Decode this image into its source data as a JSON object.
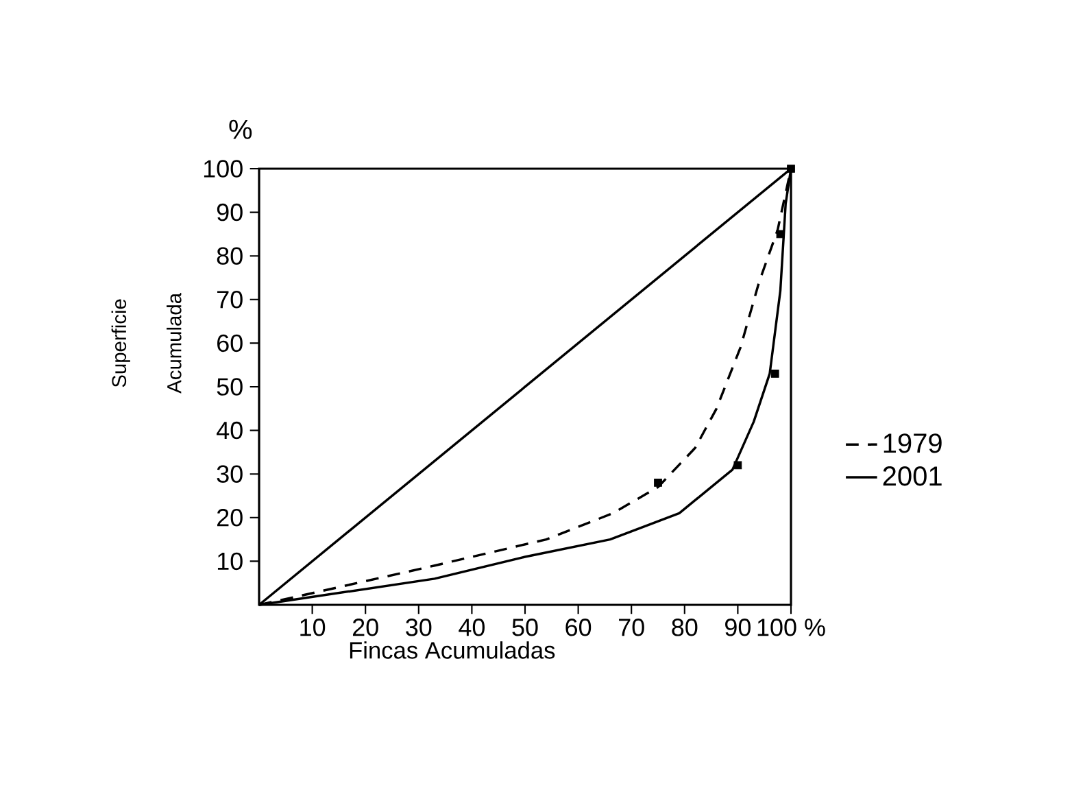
{
  "chart_data": {
    "type": "line",
    "xlabel": "Fincas Acumuladas",
    "ylabel": "Superficie",
    "annotations": [
      "Acumulada",
      "%"
    ],
    "xlim": [
      0,
      100
    ],
    "ylim": [
      0,
      100
    ],
    "xticks": [
      10,
      20,
      30,
      40,
      50,
      60,
      70,
      80,
      90,
      {
        "value": 100,
        "label": "100 %"
      }
    ],
    "yticks": [
      10,
      20,
      30,
      40,
      50,
      60,
      70,
      80,
      90,
      100
    ],
    "legend": "right",
    "series": [
      {
        "name": "1979",
        "color": "#000000",
        "line_style": "dashed",
        "x": [
          0,
          7.5,
          33,
          54,
          66.5,
          75,
          82,
          86,
          90.5,
          94,
          97.5,
          100
        ],
        "values": [
          0,
          2,
          9,
          15,
          21,
          27,
          36,
          45,
          59,
          74,
          86,
          100
        ]
      },
      {
        "name": "2001",
        "color": "#000000",
        "line_style": "solid",
        "x": [
          0,
          33,
          50,
          66,
          79,
          89,
          93,
          96,
          98,
          99,
          100
        ],
        "values": [
          0,
          6,
          11,
          15,
          21,
          31,
          42,
          53,
          72,
          92,
          100
        ]
      },
      {
        "color": "#000000",
        "line_style": "solid",
        "x": [
          0,
          100
        ],
        "values": [
          0,
          100
        ]
      },
      {
        "type": "scatter",
        "marker": "square",
        "color": "#000000",
        "x": [
          75,
          98,
          100
        ],
        "values": [
          28,
          85,
          100
        ]
      },
      {
        "type": "scatter",
        "marker": "square",
        "color": "#000000",
        "x": [
          90,
          97
        ],
        "values": [
          32,
          53
        ]
      }
    ]
  }
}
